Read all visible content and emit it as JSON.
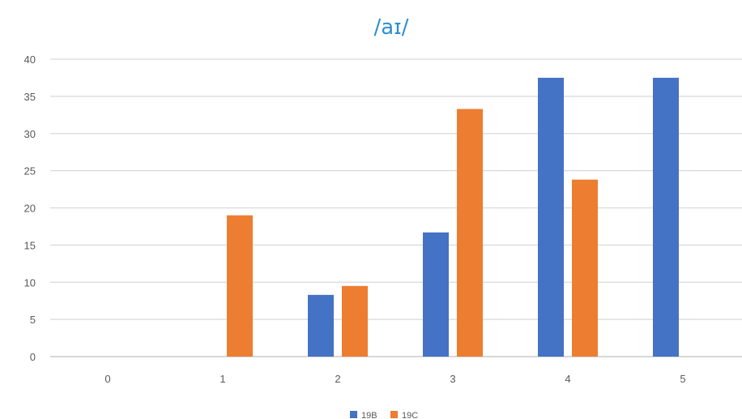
{
  "chart_data": {
    "type": "bar",
    "title": "/aɪ/",
    "categories": [
      "0",
      "1",
      "2",
      "3",
      "4",
      "5"
    ],
    "series": [
      {
        "name": "19B",
        "color": "#4472c4",
        "values": [
          0,
          0,
          8.3,
          16.7,
          37.5,
          37.5
        ]
      },
      {
        "name": "19C",
        "color": "#ed7d31",
        "values": [
          0,
          19,
          9.5,
          33.3,
          23.8,
          0
        ]
      }
    ],
    "xlabel": "",
    "ylabel": "",
    "ylim": [
      0,
      40
    ],
    "yticks": [
      0,
      5,
      10,
      15,
      20,
      25,
      30,
      35,
      40
    ],
    "grid": true,
    "legend": "bottom"
  }
}
